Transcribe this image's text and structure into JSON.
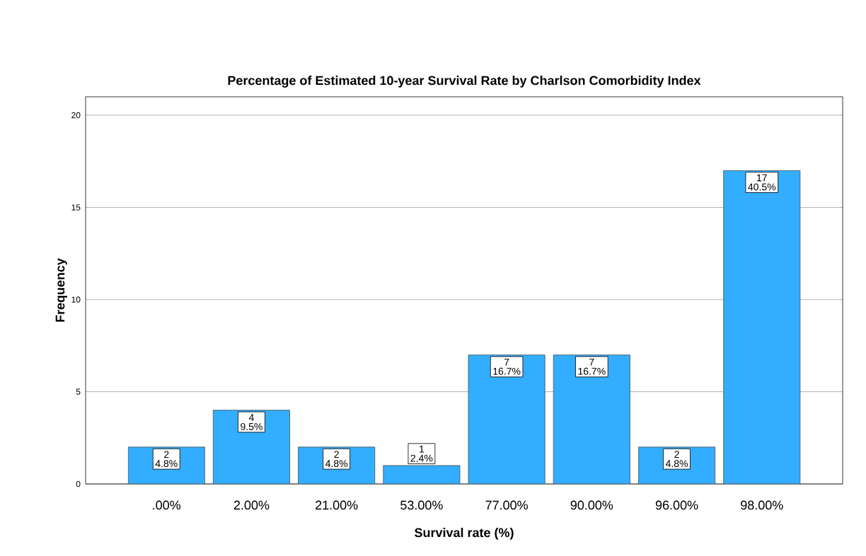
{
  "chart_data": {
    "type": "bar",
    "title": "Percentage of Estimated 10-year Survival Rate by Charlson Comorbidity Index",
    "xlabel": "Survival rate (%)",
    "ylabel": "Frequency",
    "categories": [
      ".00%",
      "2.00%",
      "21.00%",
      "53.00%",
      "77.00%",
      "90.00%",
      "96.00%",
      "98.00%"
    ],
    "values": [
      2,
      4,
      2,
      1,
      7,
      7,
      2,
      17
    ],
    "color": "#33adff",
    "data_labels": true,
    "annotations": [
      {
        "text": "4.8%",
        "x": ".00%",
        "y": 2
      },
      {
        "text": "9.5%",
        "x": "2.00%",
        "y": 4
      },
      {
        "text": "4.8%",
        "x": "21.00%",
        "y": 2
      },
      {
        "text": "2.4%",
        "x": "53.00%",
        "y": 1
      },
      {
        "text": "16.7%",
        "x": "77.00%",
        "y": 7
      },
      {
        "text": "16.7%",
        "x": "90.00%",
        "y": 7
      },
      {
        "text": "4.8%",
        "x": "96.00%",
        "y": 2
      },
      {
        "text": "40.5%",
        "x": "98.00%",
        "y": 17
      }
    ],
    "ylim": [
      0,
      21
    ],
    "yticks": [
      0,
      5,
      10,
      15,
      20
    ],
    "grid": "y"
  }
}
